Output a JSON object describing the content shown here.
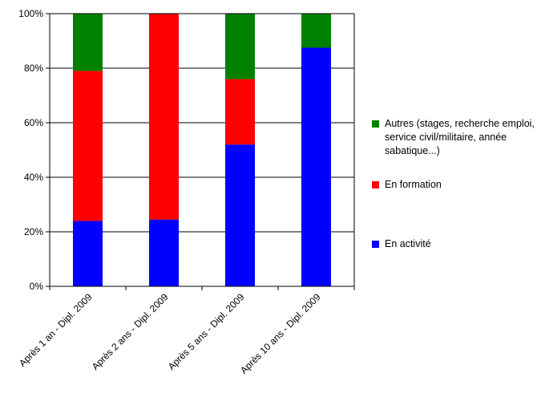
{
  "chart_data": {
    "type": "bar",
    "stacked": true,
    "categories": [
      "Après 1 an - Dipl. 2009",
      "Après 2 ans - Dipl. 2009",
      "Après 5 ans - Dipl. 2009",
      "Après 10 ans - Dipl. 2009"
    ],
    "series": [
      {
        "name": "En activité",
        "color": "#0000ff",
        "values": [
          24,
          24.5,
          52,
          87.5
        ]
      },
      {
        "name": "En formation",
        "color": "#ff0000",
        "values": [
          55,
          75.5,
          24,
          0
        ]
      },
      {
        "name": "Autres (stages, recherche emploi, service civil/militaire, année sabatique...)",
        "color": "#008000",
        "values": [
          21,
          0,
          24,
          12.5
        ]
      }
    ],
    "ylim": [
      0,
      100
    ],
    "yticks": [
      "0%",
      "20%",
      "40%",
      "60%",
      "80%",
      "100%"
    ],
    "grid": true,
    "legend_position": "right"
  }
}
